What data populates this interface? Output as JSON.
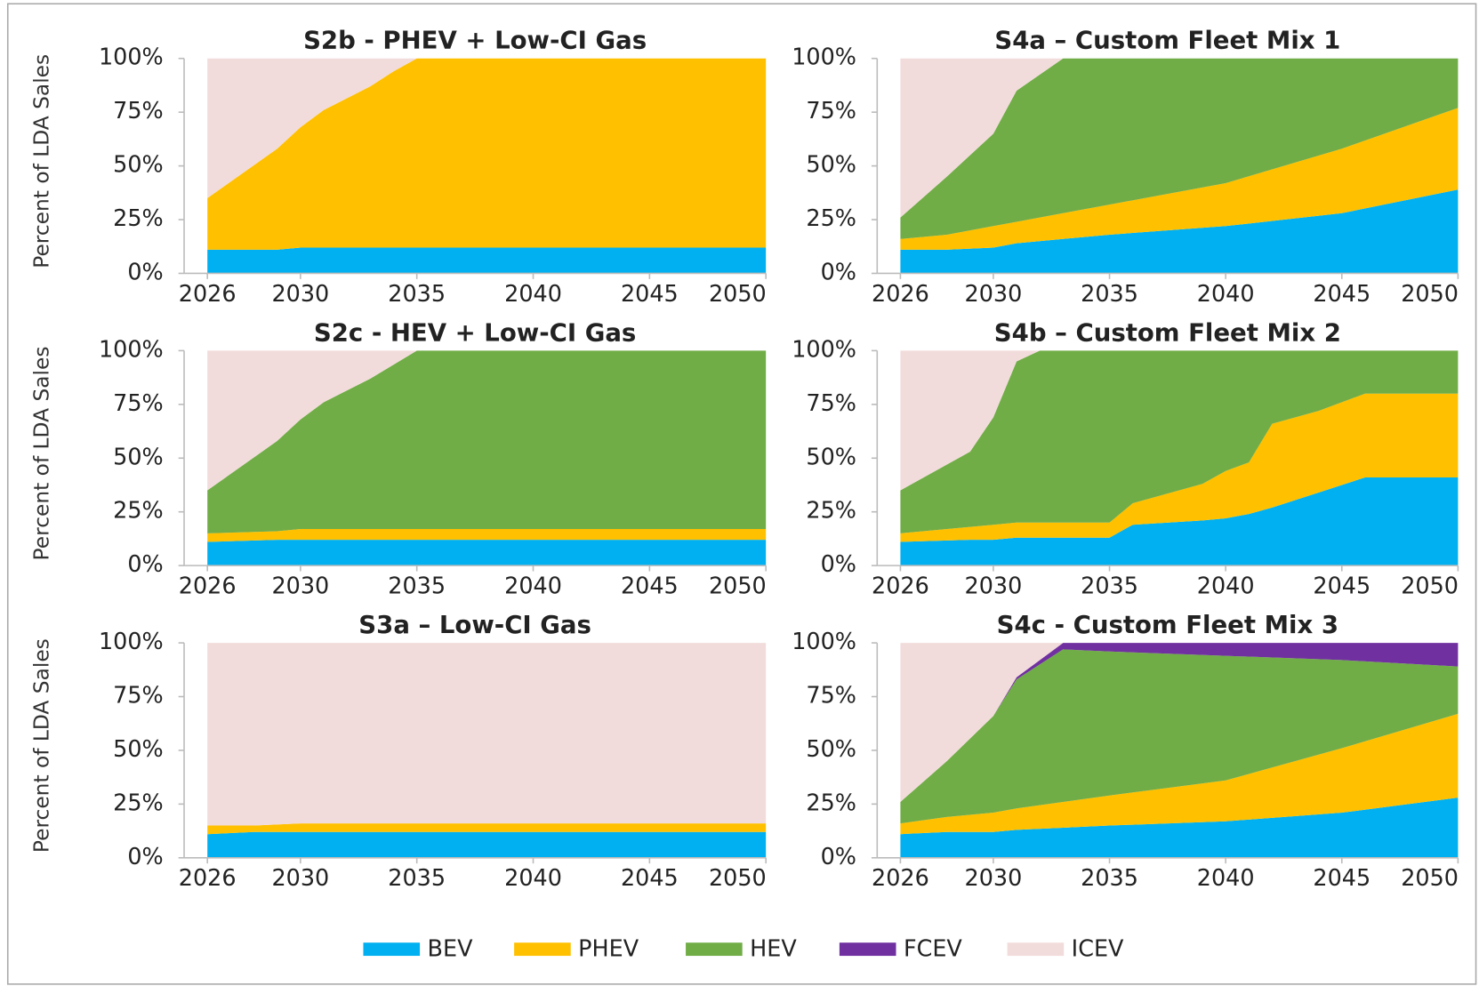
{
  "chart_data": [
    {
      "type": "area",
      "title": "S2b - PHEV + Low-CI Gas",
      "ylabel": "Percent of LDA Sales",
      "x": [
        2026,
        2029,
        2030,
        2031,
        2033,
        2034,
        2035,
        2050
      ],
      "series": [
        {
          "name": "BEV",
          "color": "#00b0f0",
          "values": [
            11,
            11,
            12,
            12,
            12,
            12,
            12,
            12
          ]
        },
        {
          "name": "PHEV",
          "color": "#ffc000",
          "values": [
            24,
            47,
            56,
            64,
            75,
            82,
            88,
            88
          ]
        },
        {
          "name": "HEV",
          "color": "#70ad47",
          "values": [
            0,
            0,
            0,
            0,
            0,
            0,
            0,
            0
          ]
        },
        {
          "name": "FCEV",
          "color": "#7030a0",
          "values": [
            0,
            0,
            0,
            0,
            0,
            0,
            0,
            0
          ]
        },
        {
          "name": "ICEV",
          "color": "#f2dcdb",
          "values": [
            65,
            42,
            32,
            24,
            13,
            6,
            0,
            0
          ]
        }
      ],
      "xlim": [
        2025,
        2050
      ],
      "xticks": [
        2026,
        2030,
        2035,
        2040,
        2045,
        2050
      ],
      "ylim": [
        0,
        100
      ],
      "yticks": [
        {
          "value": 0,
          "label": "0%"
        },
        {
          "value": 25,
          "label": "25%"
        },
        {
          "value": 50,
          "label": "50%"
        },
        {
          "value": 75,
          "label": "75%"
        },
        {
          "value": 100,
          "label": "100%"
        }
      ]
    },
    {
      "type": "area",
      "title": "S4a – Custom Fleet Mix 1",
      "x": [
        2026,
        2028,
        2030,
        2031,
        2033,
        2035,
        2040,
        2045,
        2050
      ],
      "series": [
        {
          "name": "BEV",
          "color": "#00b0f0",
          "values": [
            11,
            11,
            12,
            14,
            16,
            18,
            22,
            28,
            39
          ]
        },
        {
          "name": "PHEV",
          "color": "#ffc000",
          "values": [
            5,
            7,
            10,
            10,
            12,
            14,
            20,
            30,
            38
          ]
        },
        {
          "name": "HEV",
          "color": "#70ad47",
          "values": [
            10,
            27,
            43,
            61,
            72,
            68,
            58,
            42,
            23
          ]
        },
        {
          "name": "FCEV",
          "color": "#7030a0",
          "values": [
            0,
            0,
            0,
            0,
            0,
            0,
            0,
            0,
            0
          ]
        },
        {
          "name": "ICEV",
          "color": "#f2dcdb",
          "values": [
            74,
            55,
            35,
            15,
            0,
            0,
            0,
            0,
            0
          ]
        }
      ],
      "xlim": [
        2025,
        2050
      ],
      "xticks": [
        2026,
        2030,
        2035,
        2040,
        2045,
        2050
      ],
      "ylim": [
        0,
        100
      ],
      "yticks": [
        {
          "value": 0,
          "label": "0%"
        },
        {
          "value": 25,
          "label": "25%"
        },
        {
          "value": 50,
          "label": "50%"
        },
        {
          "value": 75,
          "label": "75%"
        },
        {
          "value": 100,
          "label": "100%"
        }
      ]
    },
    {
      "type": "area",
      "title": "S2c - HEV + Low-CI Gas",
      "ylabel": "Percent of LDA Sales",
      "x": [
        2026,
        2029,
        2030,
        2031,
        2033,
        2035,
        2050
      ],
      "series": [
        {
          "name": "BEV",
          "color": "#00b0f0",
          "values": [
            11,
            12,
            12,
            12,
            12,
            12,
            12
          ]
        },
        {
          "name": "PHEV",
          "color": "#ffc000",
          "values": [
            4,
            4,
            5,
            5,
            5,
            5,
            5
          ]
        },
        {
          "name": "HEV",
          "color": "#70ad47",
          "values": [
            20,
            42,
            51,
            59,
            70,
            83,
            83
          ]
        },
        {
          "name": "FCEV",
          "color": "#7030a0",
          "values": [
            0,
            0,
            0,
            0,
            0,
            0,
            0
          ]
        },
        {
          "name": "ICEV",
          "color": "#f2dcdb",
          "values": [
            65,
            42,
            32,
            24,
            13,
            0,
            0
          ]
        }
      ],
      "xlim": [
        2025,
        2050
      ],
      "xticks": [
        2026,
        2030,
        2035,
        2040,
        2045,
        2050
      ],
      "ylim": [
        0,
        100
      ],
      "yticks": [
        {
          "value": 0,
          "label": "0%"
        },
        {
          "value": 25,
          "label": "25%"
        },
        {
          "value": 50,
          "label": "50%"
        },
        {
          "value": 75,
          "label": "75%"
        },
        {
          "value": 100,
          "label": "100%"
        }
      ]
    },
    {
      "type": "area",
      "title": "S4b – Custom Fleet Mix 2",
      "x": [
        2026,
        2029,
        2030,
        2031,
        2032,
        2035,
        2036,
        2039,
        2040,
        2041,
        2042,
        2044,
        2046,
        2050
      ],
      "series": [
        {
          "name": "BEV",
          "color": "#00b0f0",
          "values": [
            11,
            12,
            12,
            13,
            13,
            13,
            19,
            21,
            22,
            24,
            27,
            34,
            41,
            41
          ]
        },
        {
          "name": "PHEV",
          "color": "#ffc000",
          "values": [
            4,
            6,
            7,
            7,
            7,
            7,
            10,
            17,
            22,
            24,
            39,
            38,
            39,
            39
          ]
        },
        {
          "name": "HEV",
          "color": "#70ad47",
          "values": [
            20,
            35,
            50,
            75,
            80,
            80,
            71,
            62,
            56,
            52,
            34,
            28,
            20,
            20
          ]
        },
        {
          "name": "FCEV",
          "color": "#7030a0",
          "values": [
            0,
            0,
            0,
            0,
            0,
            0,
            0,
            0,
            0,
            0,
            0,
            0,
            0,
            0
          ]
        },
        {
          "name": "ICEV",
          "color": "#f2dcdb",
          "values": [
            65,
            47,
            31,
            5,
            0,
            0,
            0,
            0,
            0,
            0,
            0,
            0,
            0,
            0
          ]
        }
      ],
      "xlim": [
        2025,
        2050
      ],
      "xticks": [
        2026,
        2030,
        2035,
        2040,
        2045,
        2050
      ],
      "ylim": [
        0,
        100
      ],
      "yticks": [
        {
          "value": 0,
          "label": "0%"
        },
        {
          "value": 25,
          "label": "25%"
        },
        {
          "value": 50,
          "label": "50%"
        },
        {
          "value": 75,
          "label": "75%"
        },
        {
          "value": 100,
          "label": "100%"
        }
      ]
    },
    {
      "type": "area",
      "title": "S3a – Low-CI Gas",
      "ylabel": "Percent of LDA Sales",
      "x": [
        2026,
        2028,
        2030,
        2050
      ],
      "series": [
        {
          "name": "BEV",
          "color": "#00b0f0",
          "values": [
            11,
            12,
            12,
            12
          ]
        },
        {
          "name": "PHEV",
          "color": "#ffc000",
          "values": [
            4,
            3,
            4,
            4
          ]
        },
        {
          "name": "HEV",
          "color": "#70ad47",
          "values": [
            0,
            0,
            0,
            0
          ]
        },
        {
          "name": "FCEV",
          "color": "#7030a0",
          "values": [
            0,
            0,
            0,
            0
          ]
        },
        {
          "name": "ICEV",
          "color": "#f2dcdb",
          "values": [
            85,
            85,
            84,
            84
          ]
        }
      ],
      "xlim": [
        2025,
        2050
      ],
      "xticks": [
        2026,
        2030,
        2035,
        2040,
        2045,
        2050
      ],
      "ylim": [
        0,
        100
      ],
      "yticks": [
        {
          "value": 0,
          "label": "0%"
        },
        {
          "value": 25,
          "label": "25%"
        },
        {
          "value": 50,
          "label": "50%"
        },
        {
          "value": 75,
          "label": "75%"
        },
        {
          "value": 100,
          "label": "100%"
        }
      ]
    },
    {
      "type": "area",
      "title": "S4c - Custom Fleet Mix 3",
      "x": [
        2026,
        2028,
        2030,
        2031,
        2033,
        2035,
        2040,
        2045,
        2050
      ],
      "series": [
        {
          "name": "BEV",
          "color": "#00b0f0",
          "values": [
            11,
            12,
            12,
            13,
            14,
            15,
            17,
            21,
            28
          ]
        },
        {
          "name": "PHEV",
          "color": "#ffc000",
          "values": [
            5,
            7,
            9,
            10,
            12,
            14,
            19,
            30,
            39
          ]
        },
        {
          "name": "HEV",
          "color": "#70ad47",
          "values": [
            10,
            26,
            45,
            60,
            71,
            67,
            58,
            41,
            22
          ]
        },
        {
          "name": "FCEV",
          "color": "#7030a0",
          "values": [
            0,
            0,
            0,
            1,
            3,
            4,
            6,
            8,
            11
          ]
        },
        {
          "name": "ICEV",
          "color": "#f2dcdb",
          "values": [
            74,
            55,
            34,
            16,
            0,
            0,
            0,
            0,
            0
          ]
        }
      ],
      "xlim": [
        2025,
        2050
      ],
      "xticks": [
        2026,
        2030,
        2035,
        2040,
        2045,
        2050
      ],
      "ylim": [
        0,
        100
      ],
      "yticks": [
        {
          "value": 0,
          "label": "0%"
        },
        {
          "value": 25,
          "label": "25%"
        },
        {
          "value": 50,
          "label": "50%"
        },
        {
          "value": 75,
          "label": "75%"
        },
        {
          "value": 100,
          "label": "100%"
        }
      ]
    }
  ]
}
